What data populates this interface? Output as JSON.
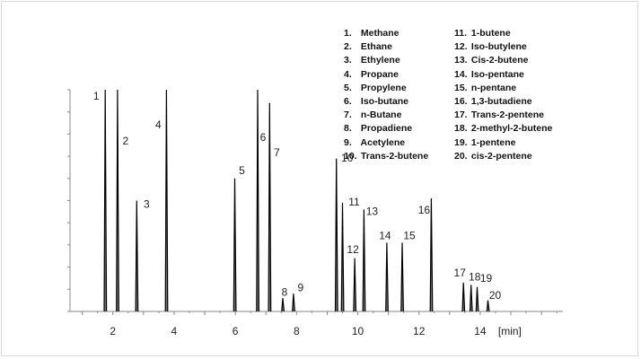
{
  "chart_data": {
    "type": "line",
    "title": "",
    "xlabel": "[min]",
    "ylabel": "",
    "xlim": [
      0.6,
      16.7
    ],
    "ylim": [
      0,
      1
    ],
    "x_ticks": [
      2,
      4,
      6,
      8,
      10,
      12,
      14
    ],
    "x_tick_labels": [
      "2",
      "4",
      "6",
      "8",
      "10",
      "12",
      "14"
    ],
    "grid": false,
    "legend_position": "top-right",
    "line_color": "#000000",
    "peaks": [
      {
        "label": "1",
        "rt": 1.75,
        "height": 1.0
      },
      {
        "label": "2",
        "rt": 2.15,
        "height": 1.0
      },
      {
        "label": "3",
        "rt": 2.78,
        "height": 0.5
      },
      {
        "label": "4",
        "rt": 3.75,
        "height": 1.0
      },
      {
        "label": "5",
        "rt": 5.98,
        "height": 0.6
      },
      {
        "label": "6",
        "rt": 6.73,
        "height": 1.0
      },
      {
        "label": "7",
        "rt": 7.12,
        "height": 0.94
      },
      {
        "label": "8",
        "rt": 7.55,
        "height": 0.06
      },
      {
        "label": "9",
        "rt": 7.9,
        "height": 0.08
      },
      {
        "label": "10",
        "rt": 9.3,
        "height": 0.69
      },
      {
        "label": "11",
        "rt": 9.5,
        "height": 0.49
      },
      {
        "label": "12",
        "rt": 9.9,
        "height": 0.24
      },
      {
        "label": "13",
        "rt": 10.2,
        "height": 0.46
      },
      {
        "label": "14",
        "rt": 10.95,
        "height": 0.31
      },
      {
        "label": "15",
        "rt": 11.45,
        "height": 0.31
      },
      {
        "label": "16",
        "rt": 12.4,
        "height": 0.51
      },
      {
        "label": "17",
        "rt": 13.45,
        "height": 0.13
      },
      {
        "label": "18",
        "rt": 13.7,
        "height": 0.12
      },
      {
        "label": "19",
        "rt": 13.9,
        "height": 0.11
      },
      {
        "label": "20",
        "rt": 14.25,
        "height": 0.05
      }
    ]
  },
  "legend": {
    "col1": [
      {
        "num": "1.",
        "name": "Methane"
      },
      {
        "num": "2.",
        "name": "Ethane"
      },
      {
        "num": "3.",
        "name": "Ethylene"
      },
      {
        "num": "4.",
        "name": "Propane"
      },
      {
        "num": "5.",
        "name": "Propylene"
      },
      {
        "num": "6.",
        "name": "Iso-butane"
      },
      {
        "num": "7.",
        "name": "n-Butane"
      },
      {
        "num": "8.",
        "name": "Propadiene"
      },
      {
        "num": "9.",
        "name": "Acetylene"
      },
      {
        "num": "10.",
        "name": "Trans-2-butene"
      }
    ],
    "col2": [
      {
        "num": "11.",
        "name": "1-butene"
      },
      {
        "num": "12.",
        "name": "Iso-butylene"
      },
      {
        "num": "13.",
        "name": "Cis-2-butene"
      },
      {
        "num": "14.",
        "name": "Iso-pentane"
      },
      {
        "num": "15.",
        "name": "n-pentane"
      },
      {
        "num": "16.",
        "name": "1,3-butadiene"
      },
      {
        "num": "17.",
        "name": "Trans-2-pentene"
      },
      {
        "num": "18.",
        "name": "2-methyl-2-butene"
      },
      {
        "num": "19.",
        "name": "1-pentene"
      },
      {
        "num": "20.",
        "name": "cis-2-pentene"
      }
    ]
  }
}
